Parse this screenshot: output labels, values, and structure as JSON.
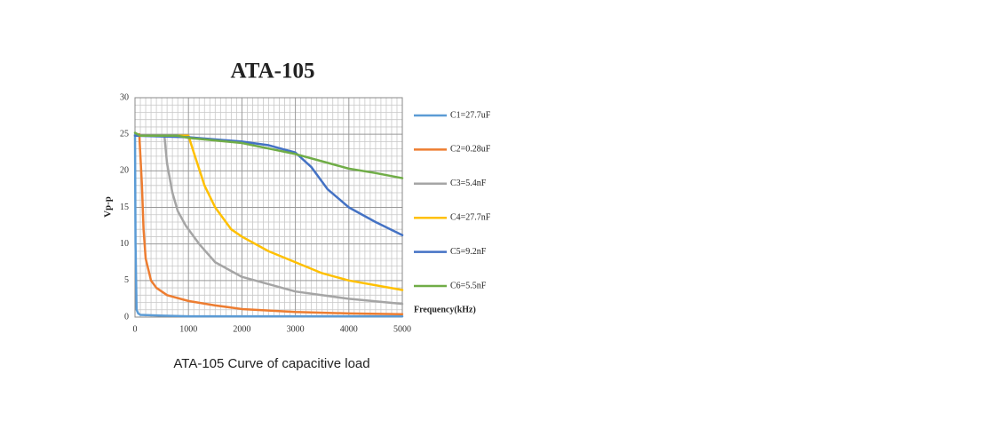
{
  "chart_data": {
    "type": "line",
    "title": "ATA-105",
    "y_label": "Vp-p",
    "x_label": "Frequency(kHz)",
    "caption": "ATA-105 Curve of capacitive load",
    "xlim": [
      0,
      5000
    ],
    "xticks": [
      0,
      1000,
      2000,
      3000,
      4000,
      5000
    ],
    "ylim": [
      0,
      30
    ],
    "yticks": [
      0,
      5,
      10,
      15,
      20,
      25,
      30
    ],
    "grid": true,
    "legend": "right",
    "series": [
      {
        "name": "C1=27.7uF",
        "color": "#5b9bd5",
        "x": [
          0,
          10,
          30,
          60,
          100,
          500,
          1000,
          2000,
          5000
        ],
        "values": [
          25,
          10,
          1,
          0.5,
          0.3,
          0.2,
          0.1,
          0.1,
          0.1
        ]
      },
      {
        "name": "C2=0.28uF",
        "color": "#ed7d31",
        "x": [
          80,
          130,
          160,
          200,
          300,
          400,
          600,
          1000,
          1500,
          2000,
          3000,
          4000,
          5000
        ],
        "values": [
          25,
          18,
          12,
          8,
          5,
          4,
          3,
          2.2,
          1.6,
          1.1,
          0.7,
          0.5,
          0.4
        ]
      },
      {
        "name": "C3=5.4nF",
        "color": "#a5a5a5",
        "x": [
          0,
          550,
          600,
          700,
          800,
          950,
          1200,
          1500,
          2000,
          2500,
          3000,
          4000,
          5000
        ],
        "values": [
          24.8,
          24.8,
          21,
          17,
          14.5,
          12.5,
          10,
          7.5,
          5.5,
          4.5,
          3.5,
          2.5,
          1.8
        ]
      },
      {
        "name": "C4=27.7nF",
        "color": "#ffc000",
        "x": [
          0,
          1000,
          1100,
          1300,
          1500,
          1800,
          2000,
          2500,
          3000,
          3500,
          4000,
          5000
        ],
        "values": [
          24.8,
          24.8,
          22.5,
          18,
          15,
          12,
          11,
          9,
          7.5,
          6,
          5,
          3.7
        ]
      },
      {
        "name": "C5=9.2nF",
        "color": "#4472c4",
        "x": [
          0,
          1000,
          2000,
          2500,
          3000,
          3300,
          3600,
          4000,
          4500,
          5000
        ],
        "values": [
          24.8,
          24.6,
          24,
          23.5,
          22.5,
          20.5,
          17.5,
          15,
          13,
          11.2
        ]
      },
      {
        "name": "C6=5.5nF",
        "color": "#70ad47",
        "x": [
          0,
          100,
          800,
          1000,
          2000,
          3000,
          3500,
          4000,
          4500,
          5000
        ],
        "values": [
          25.2,
          24.8,
          24.8,
          24.5,
          23.8,
          22.3,
          21.3,
          20.3,
          19.7,
          19
        ]
      }
    ]
  }
}
